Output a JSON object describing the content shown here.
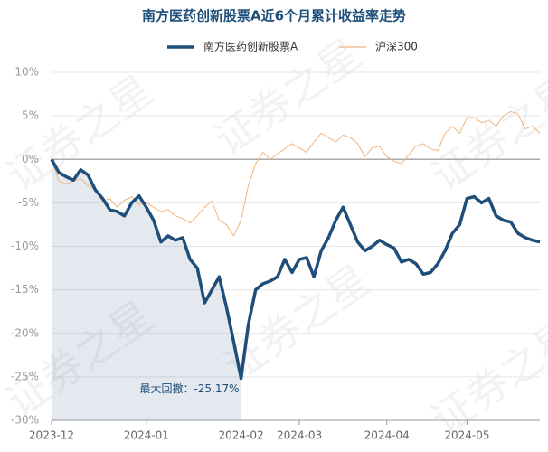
{
  "chart_data": {
    "type": "line",
    "title": "南方医药创新股票A近6个月累计收益率走势",
    "annotation": "最大回撤：-25.17%",
    "watermark": "证券之星",
    "categories": [
      "2023-12",
      null,
      null,
      null,
      null,
      null,
      null,
      null,
      null,
      null,
      null,
      null,
      null,
      "2024-01",
      null,
      null,
      null,
      null,
      null,
      null,
      null,
      null,
      null,
      null,
      null,
      null,
      "2024-02",
      null,
      null,
      null,
      null,
      null,
      null,
      null,
      "2024-03",
      null,
      null,
      null,
      null,
      null,
      null,
      null,
      null,
      null,
      null,
      null,
      "2024-04",
      null,
      null,
      null,
      null,
      null,
      null,
      null,
      null,
      null,
      null,
      "2024-05",
      null,
      null,
      null,
      null,
      null,
      null,
      null,
      null,
      null,
      null
    ],
    "series": [
      {
        "name": "南方医药创新股票A",
        "color": "#1f4e79",
        "values": [
          0,
          -1.5,
          -2,
          -2.4,
          -1.2,
          -1.8,
          -3.5,
          -4.5,
          -5.8,
          -6,
          -6.5,
          -5,
          -4.2,
          -5.5,
          -7,
          -9.5,
          -8.8,
          -9.3,
          -9,
          -11.5,
          -12.5,
          -16.5,
          -15,
          -13.5,
          -17,
          -21,
          -25.17,
          -19,
          -15,
          -14.3,
          -14,
          -13.5,
          -11.5,
          -13,
          -11.5,
          -11.3,
          -13.5,
          -10.5,
          -9,
          -7,
          -5.5,
          -7.5,
          -9.5,
          -10.5,
          -10,
          -9.3,
          -9.8,
          -10.2,
          -11.8,
          -11.5,
          -12,
          -13.2,
          -13,
          -12,
          -10.5,
          -8.5,
          -7.5,
          -4.5,
          -4.3,
          -5,
          -4.5,
          -6.5,
          -7,
          -7.2,
          -8.5,
          -9,
          -9.3,
          -9.5
        ]
      },
      {
        "name": "沪深300",
        "color": "#f0b57e",
        "values": [
          0,
          -2.5,
          -2.8,
          -2.5,
          -2.2,
          -3,
          -3.5,
          -4.8,
          -4.5,
          -5.5,
          -4.7,
          -4.3,
          -5.2,
          -5,
          -5.5,
          -6,
          -5.8,
          -6.5,
          -6.8,
          -7.3,
          -6.5,
          -5.5,
          -4.8,
          -7,
          -7.5,
          -8.8,
          -7,
          -3,
          -0.5,
          0.8,
          0,
          0.6,
          1.2,
          1.8,
          1.3,
          0.8,
          2,
          3,
          2.5,
          2,
          2.8,
          2.5,
          1.8,
          0.3,
          1.3,
          1.5,
          0.3,
          -0.2,
          -0.5,
          0.5,
          1.5,
          1.8,
          1.2,
          1,
          3,
          3.8,
          3,
          4.8,
          4.8,
          4.2,
          4.5,
          3.8,
          5,
          5.5,
          5.2,
          3.5,
          3.8,
          3
        ]
      }
    ],
    "ylim": [
      -30,
      10
    ],
    "yticks": [
      {
        "value": 10,
        "label": "10%"
      },
      {
        "value": 5,
        "label": "5%"
      },
      {
        "value": 0,
        "label": "0%"
      },
      {
        "value": -5,
        "label": "-5%"
      },
      {
        "value": -10,
        "label": "-10%"
      },
      {
        "value": -15,
        "label": "-15%"
      },
      {
        "value": -20,
        "label": "-20%"
      },
      {
        "value": -25,
        "label": "-25%"
      },
      {
        "value": -30,
        "label": "-30%"
      }
    ],
    "grid": true
  }
}
